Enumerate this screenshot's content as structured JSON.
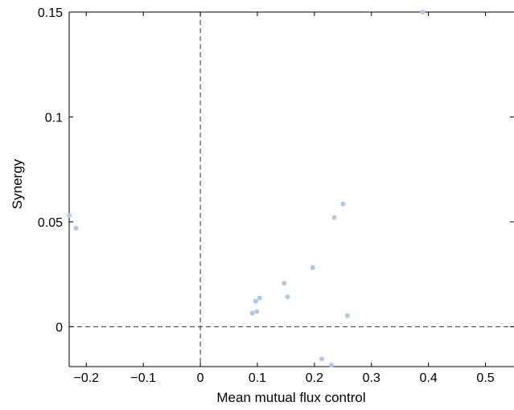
{
  "chart_data": {
    "type": "scatter",
    "title": "",
    "xlabel": "Mean mutual flux control",
    "ylabel": "Synergy",
    "xlim": [
      -0.23,
      0.55
    ],
    "ylim": [
      -0.019,
      0.15
    ],
    "xticks": [
      -0.2,
      -0.1,
      0,
      0.1,
      0.2,
      0.3,
      0.4,
      0.5
    ],
    "xtick_labels": [
      "−0.2",
      "−0.1",
      "0",
      "0.1",
      "0.2",
      "0.3",
      "0.4",
      "0.5"
    ],
    "yticks": [
      0,
      0.05,
      0.1,
      0.15
    ],
    "ytick_labels": [
      "0",
      "0.05",
      "0.1",
      "0.15"
    ],
    "grid": false,
    "reference_lines": {
      "x": 0,
      "y": 0,
      "style": "dashed"
    },
    "marker_color": "#aac8f5",
    "series": [
      {
        "points": [
          [
            -0.23,
            0.053
          ],
          [
            -0.218,
            0.047
          ],
          [
            0.091,
            0.0065
          ],
          [
            0.099,
            0.0072
          ],
          [
            0.097,
            0.0122
          ],
          [
            0.104,
            0.0137
          ],
          [
            0.147,
            0.0207
          ],
          [
            0.153,
            0.0143
          ],
          [
            0.197,
            0.0282
          ],
          [
            0.213,
            -0.0153
          ],
          [
            0.23,
            -0.0183
          ],
          [
            0.235,
            0.0521
          ],
          [
            0.25,
            0.0585
          ],
          [
            0.258,
            0.0053
          ],
          [
            0.39,
            0.15
          ]
        ]
      }
    ]
  }
}
